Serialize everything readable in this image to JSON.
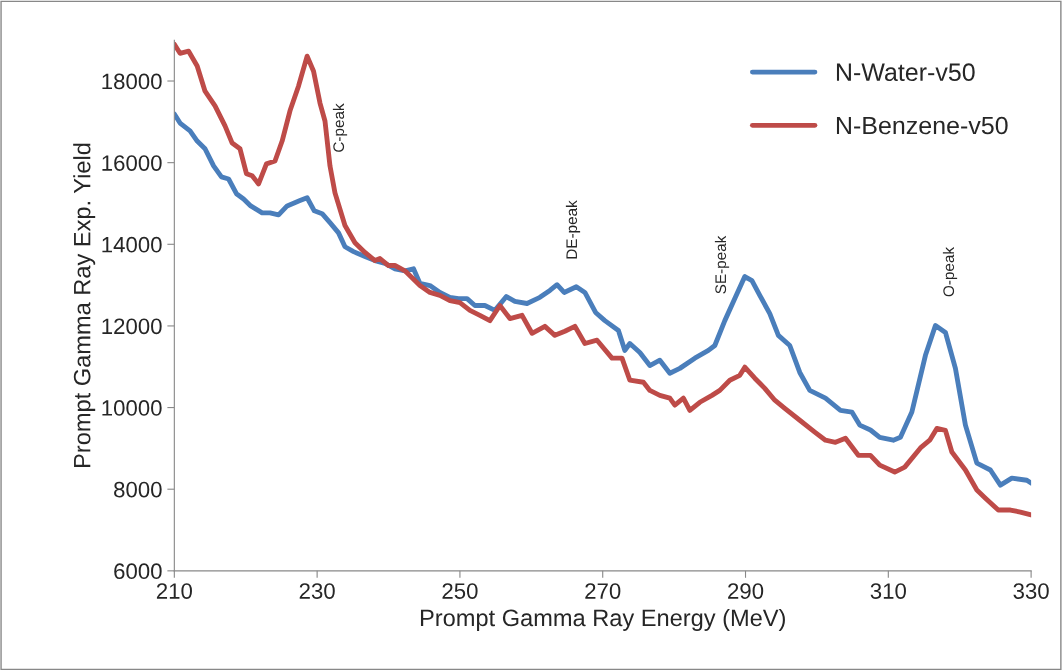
{
  "chart_data": {
    "type": "line",
    "xlabel": "Prompt Gamma Ray Energy (MeV)",
    "ylabel": "Prompt Gamma Ray Exp. Yield",
    "xlim": [
      210,
      330
    ],
    "xticks": [
      210,
      230,
      250,
      270,
      290,
      310,
      330
    ],
    "ylim": [
      6000,
      19000
    ],
    "yticks": [
      6000,
      8000,
      10000,
      12000,
      14000,
      16000,
      18000
    ],
    "grid": false,
    "legend": "top right",
    "marker": "none",
    "line_style": "solid",
    "series": [
      {
        "name": "N-Water-v50",
        "color": "#4a7ebb",
        "x": [
          210,
          210.8,
          212.2,
          213.2,
          214.3,
          215.5,
          216.6,
          217.6,
          218.7,
          219.7,
          220.7,
          222.3,
          223.4,
          224.6,
          225.8,
          227.6,
          228.6,
          229.6,
          230.7,
          231.8,
          233,
          233.9,
          235.1,
          236.7,
          238.1,
          239.5,
          240.9,
          242.3,
          243.5,
          244.4,
          245.8,
          247.2,
          248.6,
          249.8,
          251,
          252.1,
          253.5,
          254.9,
          256.5,
          257.7,
          259.4,
          261.2,
          262.6,
          263.6,
          264.6,
          266.3,
          267.5,
          269,
          270.3,
          272.2,
          273.1,
          273.8,
          275.2,
          276.6,
          278,
          279.4,
          280.8,
          282.9,
          284.8,
          285.7,
          287.1,
          288.5,
          289.9,
          290.9,
          292,
          293.4,
          294.6,
          296.2,
          297.6,
          299,
          301.2,
          303.3,
          304.9,
          306,
          307.5,
          308.8,
          310.7,
          311.7,
          313.3,
          315.2,
          316.6,
          318,
          319.4,
          320.8,
          322.4,
          324.3,
          325.7,
          327.3,
          329.4,
          330
        ],
        "values": [
          17190,
          16970,
          16780,
          16530,
          16340,
          15920,
          15650,
          15600,
          15240,
          15110,
          14940,
          14770,
          14770,
          14720,
          14940,
          15070,
          15140,
          14820,
          14750,
          14530,
          14280,
          13940,
          13820,
          13700,
          13600,
          13530,
          13400,
          13350,
          13400,
          13040,
          12990,
          12820,
          12700,
          12670,
          12670,
          12500,
          12500,
          12380,
          12720,
          12600,
          12550,
          12700,
          12870,
          13010,
          12820,
          12960,
          12820,
          12330,
          12130,
          11890,
          11400,
          11570,
          11350,
          11030,
          11160,
          10840,
          10960,
          11210,
          11400,
          11520,
          12130,
          12670,
          13210,
          13110,
          12750,
          12300,
          11770,
          11520,
          10860,
          10420,
          10230,
          9930,
          9890,
          9570,
          9450,
          9270,
          9200,
          9270,
          9890,
          11280,
          12010,
          11840,
          10960,
          9570,
          8640,
          8470,
          8100,
          8270,
          8220,
          8150
        ]
      },
      {
        "name": "N-Benzene-v50",
        "color": "#be4b48",
        "x": [
          210,
          210.8,
          212,
          213.2,
          214.3,
          215.7,
          217.1,
          218.1,
          219.2,
          220.1,
          220.9,
          221.8,
          222.9,
          224.1,
          225.1,
          226.2,
          227.4,
          228.6,
          229.5,
          230.4,
          231.1,
          231.8,
          232.5,
          233.9,
          235.3,
          236.7,
          238.1,
          238.8,
          240,
          240.9,
          242.3,
          244.4,
          245.8,
          247.2,
          248.6,
          250,
          251.4,
          252.8,
          254.2,
          255.6,
          257,
          258.7,
          260.1,
          261.9,
          263.3,
          264.7,
          266.1,
          267.5,
          269.2,
          271.3,
          272.7,
          273.8,
          275.7,
          276.6,
          278,
          279.4,
          280.1,
          281.3,
          282.2,
          283.6,
          285.3,
          286.4,
          287.8,
          289.2,
          289.9,
          291.3,
          292.7,
          294.1,
          295.5,
          297.6,
          299.7,
          301.2,
          302.6,
          304,
          305.8,
          307.5,
          308.8,
          310.9,
          312.3,
          314.5,
          315.8,
          316.8,
          318,
          318.9,
          320.8,
          322.4,
          323.6,
          325.4,
          327.1,
          328.5,
          330
        ],
        "values": [
          18900,
          18680,
          18730,
          18370,
          17750,
          17390,
          16900,
          16480,
          16340,
          15730,
          15680,
          15480,
          15970,
          16040,
          16530,
          17270,
          17880,
          18610,
          18240,
          17460,
          17020,
          15920,
          15260,
          14460,
          14040,
          13800,
          13600,
          13650,
          13480,
          13480,
          13350,
          12990,
          12820,
          12750,
          12620,
          12570,
          12380,
          12260,
          12130,
          12500,
          12180,
          12260,
          11820,
          11990,
          11770,
          11870,
          11990,
          11570,
          11650,
          11210,
          11210,
          10670,
          10620,
          10420,
          10300,
          10230,
          10060,
          10230,
          9930,
          10130,
          10300,
          10420,
          10670,
          10790,
          10990,
          10720,
          10470,
          10180,
          9980,
          9690,
          9400,
          9200,
          9150,
          9250,
          8830,
          8830,
          8590,
          8420,
          8540,
          9010,
          9200,
          9490,
          9440,
          8910,
          8470,
          7980,
          7780,
          7490,
          7490,
          7440,
          7370
        ]
      }
    ],
    "annotations": [
      "C-peak",
      "DE-peak",
      "SE-peak",
      "O-peak"
    ]
  }
}
